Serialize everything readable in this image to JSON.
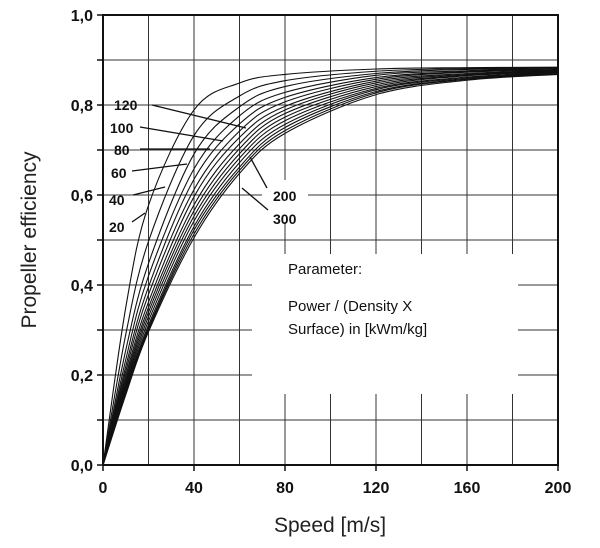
{
  "chart_data": {
    "type": "line",
    "title": "",
    "xlabel": "Speed [m/s]",
    "ylabel": "Propeller efficiency",
    "xlim": [
      0,
      200
    ],
    "ylim": [
      0.0,
      1.0
    ],
    "x_ticks": [
      "0",
      "40",
      "80",
      "120",
      "160",
      "200"
    ],
    "y_ticks": [
      "0,0",
      "0,2",
      "0,4",
      "0,6",
      "0,8",
      "1,0"
    ],
    "grid": true,
    "legend": "none",
    "line_color": "#111111",
    "x": [
      0,
      10,
      20,
      40,
      60,
      80,
      120,
      160,
      200
    ],
    "series": [
      {
        "name": "20",
        "values": [
          0,
          0.35,
          0.577,
          0.789,
          0.849,
          0.868,
          0.88,
          0.883,
          0.884
        ]
      },
      {
        "name": "40",
        "values": [
          0,
          0.29,
          0.497,
          0.732,
          0.82,
          0.854,
          0.875,
          0.881,
          0.883
        ]
      },
      {
        "name": "60",
        "values": [
          0,
          0.255,
          0.448,
          0.691,
          0.796,
          0.841,
          0.87,
          0.879,
          0.881
        ]
      },
      {
        "name": "80",
        "values": [
          0,
          0.234,
          0.42,
          0.658,
          0.776,
          0.828,
          0.866,
          0.876,
          0.881
        ]
      },
      {
        "name": "100",
        "values": [
          0,
          0.219,
          0.396,
          0.635,
          0.758,
          0.817,
          0.861,
          0.874,
          0.88
        ]
      },
      {
        "name": "120",
        "values": [
          0,
          0.208,
          0.379,
          0.612,
          0.742,
          0.807,
          0.857,
          0.873,
          0.878
        ]
      },
      {
        "values": [
          0,
          0.198,
          0.362,
          0.596,
          0.728,
          0.797,
          0.853,
          0.87,
          0.877
        ]
      },
      {
        "values": [
          0,
          0.19,
          0.35,
          0.578,
          0.714,
          0.789,
          0.849,
          0.868,
          0.876
        ]
      },
      {
        "values": [
          0,
          0.183,
          0.34,
          0.565,
          0.703,
          0.781,
          0.845,
          0.866,
          0.875
        ]
      },
      {
        "name": "200",
        "values": [
          0,
          0.177,
          0.33,
          0.553,
          0.692,
          0.773,
          0.841,
          0.865,
          0.874
        ]
      },
      {
        "values": [
          0,
          0.172,
          0.32,
          0.542,
          0.682,
          0.765,
          0.837,
          0.862,
          0.873
        ]
      },
      {
        "values": [
          0,
          0.167,
          0.311,
          0.53,
          0.672,
          0.757,
          0.834,
          0.86,
          0.872
        ]
      },
      {
        "values": [
          0,
          0.163,
          0.305,
          0.522,
          0.662,
          0.75,
          0.83,
          0.858,
          0.871
        ]
      },
      {
        "values": [
          0,
          0.159,
          0.301,
          0.513,
          0.655,
          0.743,
          0.827,
          0.857,
          0.869
        ]
      },
      {
        "name": "300",
        "values": [
          0,
          0.156,
          0.296,
          0.505,
          0.648,
          0.737,
          0.823,
          0.855,
          0.868
        ]
      }
    ],
    "annotations": [
      "120",
      "100",
      "80",
      "60",
      "40",
      "20",
      "200",
      "300"
    ],
    "note": {
      "heading": "Parameter:",
      "line1": "Power / (Density X",
      "line2": "Surface) in [kWm/kg]"
    }
  }
}
